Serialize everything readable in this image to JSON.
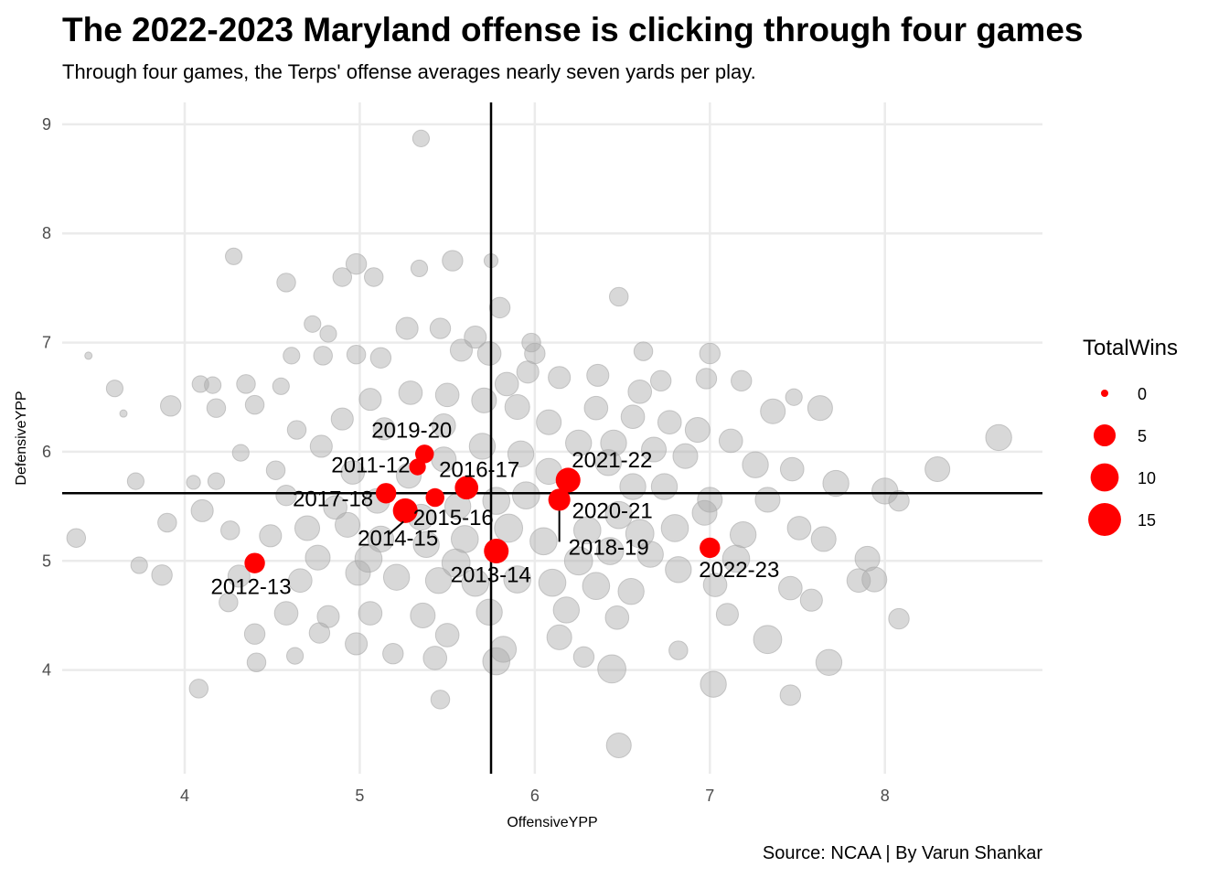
{
  "title": "The 2022-2023 Maryland offense is clicking through four games",
  "subtitle": "Through four games, the Terps' offense averages nearly seven yards per play.",
  "caption": "Source: NCAA | By Varun Shankar",
  "chart_data": {
    "type": "scatter",
    "xlabel": "OffensiveYPP",
    "ylabel": "DefensiveYPP",
    "xlim": [
      3.3,
      8.9
    ],
    "ylim": [
      3.05,
      9.2
    ],
    "x_ticks": [
      4,
      5,
      6,
      7,
      8
    ],
    "y_ticks": [
      4,
      5,
      6,
      7,
      8,
      9
    ],
    "grid": true,
    "vline_x": 5.75,
    "hline_y": 5.62,
    "size_variable": "TotalWins",
    "legend": {
      "title": "TotalWins",
      "position": "right",
      "entries": [
        {
          "label": "0",
          "value": 0
        },
        {
          "label": "5",
          "value": 5
        },
        {
          "label": "10",
          "value": 10
        },
        {
          "label": "15",
          "value": 15
        }
      ]
    },
    "colors": {
      "highlight": "#ff0000",
      "background_points": "#a9a9a9",
      "reference_lines": "#000000",
      "grid": "#ebebeb"
    },
    "highlighted": [
      {
        "season": "2011-12",
        "x": 5.33,
        "y": 5.86,
        "wins": 2
      },
      {
        "season": "2012-13",
        "x": 4.4,
        "y": 4.98,
        "wins": 4
      },
      {
        "season": "2013-14",
        "x": 5.78,
        "y": 5.09,
        "wins": 7
      },
      {
        "season": "2014-15",
        "x": 5.26,
        "y": 5.46,
        "wins": 7
      },
      {
        "season": "2015-16",
        "x": 5.43,
        "y": 5.58,
        "wins": 3
      },
      {
        "season": "2016-17",
        "x": 5.61,
        "y": 5.67,
        "wins": 6
      },
      {
        "season": "2017-18",
        "x": 5.15,
        "y": 5.62,
        "wins": 4
      },
      {
        "season": "2018-19",
        "x": 6.14,
        "y": 5.56,
        "wins": 5
      },
      {
        "season": "2019-20",
        "x": 5.37,
        "y": 5.98,
        "wins": 3
      },
      {
        "season": "2020-21",
        "x": 6.14,
        "y": 5.56,
        "wins": 2
      },
      {
        "season": "2021-22",
        "x": 6.19,
        "y": 5.74,
        "wins": 7
      },
      {
        "season": "2022-23",
        "x": 7.0,
        "y": 5.12,
        "wins": 4
      }
    ],
    "background_points": [
      {
        "x": 5.35,
        "y": 8.87,
        "wins": 2
      },
      {
        "x": 3.45,
        "y": 6.88,
        "wins": 0
      },
      {
        "x": 4.28,
        "y": 7.79,
        "wins": 2
      },
      {
        "x": 5.75,
        "y": 7.75,
        "wins": 1
      },
      {
        "x": 3.38,
        "y": 5.21,
        "wins": 3
      },
      {
        "x": 8.65,
        "y": 6.13,
        "wins": 8
      },
      {
        "x": 8.3,
        "y": 5.84,
        "wins": 7
      },
      {
        "x": 8.08,
        "y": 5.55,
        "wins": 4
      },
      {
        "x": 8.0,
        "y": 5.64,
        "wins": 8
      },
      {
        "x": 8.08,
        "y": 4.47,
        "wins": 4
      },
      {
        "x": 7.63,
        "y": 6.4,
        "wins": 7
      },
      {
        "x": 7.47,
        "y": 5.84,
        "wins": 6
      },
      {
        "x": 6.48,
        "y": 3.31,
        "wins": 7
      },
      {
        "x": 5.46,
        "y": 3.73,
        "wins": 3
      },
      {
        "x": 4.08,
        "y": 3.83,
        "wins": 3
      },
      {
        "x": 3.72,
        "y": 5.73,
        "wins": 2
      },
      {
        "x": 3.87,
        "y": 4.87,
        "wins": 4
      },
      {
        "x": 3.92,
        "y": 6.42,
        "wins": 4
      },
      {
        "x": 3.6,
        "y": 6.58,
        "wins": 2
      },
      {
        "x": 3.65,
        "y": 6.35,
        "wins": 0
      },
      {
        "x": 6.72,
        "y": 6.65,
        "wins": 4
      },
      {
        "x": 6.48,
        "y": 7.42,
        "wins": 3
      },
      {
        "x": 7.33,
        "y": 4.28,
        "wins": 10
      },
      {
        "x": 7.68,
        "y": 4.07,
        "wins": 8
      },
      {
        "x": 7.46,
        "y": 3.77,
        "wins": 4
      },
      {
        "x": 7.02,
        "y": 3.87,
        "wins": 8
      },
      {
        "x": 6.44,
        "y": 4.01,
        "wins": 10
      },
      {
        "x": 5.78,
        "y": 4.08,
        "wins": 9
      },
      {
        "x": 4.1,
        "y": 5.46,
        "wins": 5
      },
      {
        "x": 4.4,
        "y": 4.33,
        "wins": 4
      },
      {
        "x": 4.41,
        "y": 4.07,
        "wins": 3
      },
      {
        "x": 4.63,
        "y": 4.13,
        "wins": 2
      },
      {
        "x": 4.09,
        "y": 6.62,
        "wins": 2
      },
      {
        "x": 4.16,
        "y": 6.61,
        "wins": 2
      },
      {
        "x": 4.18,
        "y": 6.4,
        "wins": 3
      },
      {
        "x": 4.35,
        "y": 6.62,
        "wins": 3
      },
      {
        "x": 4.05,
        "y": 5.72,
        "wins": 1
      },
      {
        "x": 4.18,
        "y": 5.73,
        "wins": 2
      },
      {
        "x": 3.9,
        "y": 5.35,
        "wins": 3
      },
      {
        "x": 3.74,
        "y": 4.96,
        "wins": 2
      },
      {
        "x": 4.9,
        "y": 7.6,
        "wins": 3
      },
      {
        "x": 4.98,
        "y": 7.72,
        "wins": 4
      },
      {
        "x": 5.08,
        "y": 7.6,
        "wins": 3
      },
      {
        "x": 5.53,
        "y": 7.75,
        "wins": 4
      },
      {
        "x": 5.34,
        "y": 7.68,
        "wins": 2
      },
      {
        "x": 4.58,
        "y": 7.55,
        "wins": 3
      },
      {
        "x": 5.66,
        "y": 7.05,
        "wins": 5
      },
      {
        "x": 5.8,
        "y": 7.32,
        "wins": 4
      },
      {
        "x": 6.36,
        "y": 6.7,
        "wins": 5
      },
      {
        "x": 6.6,
        "y": 6.55,
        "wins": 6
      },
      {
        "x": 6.98,
        "y": 6.67,
        "wins": 4
      },
      {
        "x": 7.18,
        "y": 6.65,
        "wins": 4
      },
      {
        "x": 7.36,
        "y": 6.37,
        "wins": 7
      },
      {
        "x": 7.48,
        "y": 6.5,
        "wins": 2
      },
      {
        "x": 7.72,
        "y": 5.71,
        "wins": 8
      },
      {
        "x": 7.65,
        "y": 5.2,
        "wins": 7
      },
      {
        "x": 7.9,
        "y": 5.02,
        "wins": 7
      },
      {
        "x": 7.94,
        "y": 4.83,
        "wins": 7
      },
      {
        "x": 7.85,
        "y": 4.82,
        "wins": 6
      },
      {
        "x": 7.58,
        "y": 4.64,
        "wins": 5
      },
      {
        "x": 7.46,
        "y": 4.75,
        "wins": 6
      },
      {
        "x": 7.1,
        "y": 4.51,
        "wins": 5
      },
      {
        "x": 6.82,
        "y": 4.18,
        "wins": 3
      },
      {
        "x": 6.47,
        "y": 4.48,
        "wins": 6
      },
      {
        "x": 6.14,
        "y": 4.3,
        "wins": 7
      },
      {
        "x": 5.82,
        "y": 4.19,
        "wins": 8
      },
      {
        "x": 5.43,
        "y": 4.11,
        "wins": 6
      },
      {
        "x": 5.19,
        "y": 4.15,
        "wins": 4
      },
      {
        "x": 4.82,
        "y": 4.49,
        "wins": 5
      },
      {
        "x": 4.58,
        "y": 4.52,
        "wins": 6
      },
      {
        "x": 4.31,
        "y": 4.86,
        "wins": 5
      },
      {
        "x": 4.49,
        "y": 5.23,
        "wins": 5
      },
      {
        "x": 4.52,
        "y": 5.83,
        "wins": 3
      },
      {
        "x": 4.4,
        "y": 6.43,
        "wins": 3
      },
      {
        "x": 4.61,
        "y": 6.88,
        "wins": 2
      },
      {
        "x": 4.73,
        "y": 7.17,
        "wins": 2
      },
      {
        "x": 4.82,
        "y": 7.08,
        "wins": 2
      },
      {
        "x": 4.79,
        "y": 6.88,
        "wins": 3
      },
      {
        "x": 4.98,
        "y": 6.89,
        "wins": 3
      },
      {
        "x": 5.12,
        "y": 6.86,
        "wins": 4
      },
      {
        "x": 5.27,
        "y": 7.13,
        "wins": 5
      },
      {
        "x": 5.46,
        "y": 7.13,
        "wins": 4
      },
      {
        "x": 5.58,
        "y": 6.93,
        "wins": 5
      },
      {
        "x": 5.74,
        "y": 6.9,
        "wins": 6
      },
      {
        "x": 5.96,
        "y": 6.73,
        "wins": 5
      },
      {
        "x": 6.14,
        "y": 6.68,
        "wins": 5
      },
      {
        "x": 6.35,
        "y": 6.4,
        "wins": 6
      },
      {
        "x": 6.56,
        "y": 6.32,
        "wins": 6
      },
      {
        "x": 6.77,
        "y": 6.27,
        "wins": 6
      },
      {
        "x": 6.93,
        "y": 6.2,
        "wins": 7
      },
      {
        "x": 7.12,
        "y": 6.1,
        "wins": 6
      },
      {
        "x": 7.26,
        "y": 5.88,
        "wins": 8
      },
      {
        "x": 7.33,
        "y": 5.56,
        "wins": 7
      },
      {
        "x": 7.19,
        "y": 5.24,
        "wins": 8
      },
      {
        "x": 6.97,
        "y": 5.44,
        "wins": 7
      },
      {
        "x": 6.74,
        "y": 5.68,
        "wins": 8
      },
      {
        "x": 6.66,
        "y": 5.06,
        "wins": 8
      },
      {
        "x": 6.43,
        "y": 5.09,
        "wins": 9
      },
      {
        "x": 6.35,
        "y": 4.77,
        "wins": 9
      },
      {
        "x": 6.1,
        "y": 4.8,
        "wins": 9
      },
      {
        "x": 5.9,
        "y": 4.83,
        "wins": 9
      },
      {
        "x": 5.66,
        "y": 4.8,
        "wins": 9
      },
      {
        "x": 5.45,
        "y": 4.82,
        "wins": 8
      },
      {
        "x": 5.21,
        "y": 4.85,
        "wins": 8
      },
      {
        "x": 4.99,
        "y": 4.89,
        "wins": 7
      },
      {
        "x": 4.76,
        "y": 5.03,
        "wins": 7
      },
      {
        "x": 4.7,
        "y": 5.3,
        "wins": 7
      },
      {
        "x": 4.86,
        "y": 5.49,
        "wins": 6
      },
      {
        "x": 4.96,
        "y": 5.81,
        "wins": 6
      },
      {
        "x": 4.78,
        "y": 6.05,
        "wins": 5
      },
      {
        "x": 4.9,
        "y": 6.3,
        "wins": 5
      },
      {
        "x": 5.06,
        "y": 6.48,
        "wins": 5
      },
      {
        "x": 5.29,
        "y": 6.54,
        "wins": 6
      },
      {
        "x": 5.5,
        "y": 6.52,
        "wins": 6
      },
      {
        "x": 5.71,
        "y": 6.47,
        "wins": 7
      },
      {
        "x": 5.9,
        "y": 6.41,
        "wins": 7
      },
      {
        "x": 6.08,
        "y": 6.27,
        "wins": 7
      },
      {
        "x": 6.25,
        "y": 6.08,
        "wins": 8
      },
      {
        "x": 6.42,
        "y": 5.9,
        "wins": 8
      },
      {
        "x": 6.56,
        "y": 5.68,
        "wins": 8
      },
      {
        "x": 6.48,
        "y": 5.42,
        "wins": 9
      },
      {
        "x": 6.3,
        "y": 5.28,
        "wins": 9
      },
      {
        "x": 6.05,
        "y": 5.18,
        "wins": 9
      },
      {
        "x": 5.85,
        "y": 5.3,
        "wins": 10
      },
      {
        "x": 5.6,
        "y": 5.2,
        "wins": 9
      },
      {
        "x": 5.38,
        "y": 5.15,
        "wins": 8
      },
      {
        "x": 5.12,
        "y": 5.2,
        "wins": 8
      },
      {
        "x": 4.93,
        "y": 5.33,
        "wins": 7
      },
      {
        "x": 5.1,
        "y": 5.55,
        "wins": 7
      },
      {
        "x": 5.28,
        "y": 5.78,
        "wins": 7
      },
      {
        "x": 5.48,
        "y": 5.93,
        "wins": 7
      },
      {
        "x": 5.7,
        "y": 6.05,
        "wins": 8
      },
      {
        "x": 5.92,
        "y": 5.98,
        "wins": 8
      },
      {
        "x": 6.08,
        "y": 5.82,
        "wins": 8
      },
      {
        "x": 5.95,
        "y": 5.6,
        "wins": 9
      },
      {
        "x": 5.78,
        "y": 5.55,
        "wins": 9
      },
      {
        "x": 5.56,
        "y": 5.5,
        "wins": 8
      },
      {
        "x": 5.35,
        "y": 5.4,
        "wins": 8
      },
      {
        "x": 5.48,
        "y": 6.24,
        "wins": 6
      },
      {
        "x": 5.84,
        "y": 6.62,
        "wins": 6
      },
      {
        "x": 6.0,
        "y": 6.9,
        "wins": 4
      },
      {
        "x": 5.14,
        "y": 6.21,
        "wins": 5
      },
      {
        "x": 4.64,
        "y": 6.2,
        "wins": 3
      },
      {
        "x": 4.58,
        "y": 5.6,
        "wins": 4
      },
      {
        "x": 4.66,
        "y": 4.82,
        "wins": 6
      },
      {
        "x": 5.06,
        "y": 4.52,
        "wins": 6
      },
      {
        "x": 5.36,
        "y": 4.5,
        "wins": 7
      },
      {
        "x": 5.74,
        "y": 4.53,
        "wins": 8
      },
      {
        "x": 6.18,
        "y": 4.55,
        "wins": 8
      },
      {
        "x": 6.55,
        "y": 4.72,
        "wins": 8
      },
      {
        "x": 6.82,
        "y": 4.92,
        "wins": 8
      },
      {
        "x": 7.0,
        "y": 5.56,
        "wins": 7
      },
      {
        "x": 6.86,
        "y": 5.96,
        "wins": 7
      },
      {
        "x": 6.68,
        "y": 6.02,
        "wins": 7
      },
      {
        "x": 7.51,
        "y": 5.3,
        "wins": 6
      },
      {
        "x": 7.03,
        "y": 4.78,
        "wins": 6
      },
      {
        "x": 6.28,
        "y": 4.12,
        "wins": 4
      },
      {
        "x": 5.5,
        "y": 4.32,
        "wins": 6
      },
      {
        "x": 4.98,
        "y": 4.24,
        "wins": 5
      },
      {
        "x": 4.77,
        "y": 4.34,
        "wins": 4
      },
      {
        "x": 4.25,
        "y": 4.62,
        "wins": 3
      },
      {
        "x": 4.26,
        "y": 5.28,
        "wins": 3
      },
      {
        "x": 4.32,
        "y": 5.99,
        "wins": 2
      },
      {
        "x": 4.55,
        "y": 6.6,
        "wins": 2
      },
      {
        "x": 5.98,
        "y": 7.0,
        "wins": 3
      },
      {
        "x": 6.62,
        "y": 6.92,
        "wins": 3
      },
      {
        "x": 7.0,
        "y": 6.9,
        "wins": 4
      },
      {
        "x": 6.6,
        "y": 5.25,
        "wins": 10
      },
      {
        "x": 6.25,
        "y": 5.0,
        "wins": 10
      },
      {
        "x": 5.55,
        "y": 4.98,
        "wins": 10
      },
      {
        "x": 5.05,
        "y": 5.02,
        "wins": 9
      },
      {
        "x": 6.8,
        "y": 5.3,
        "wins": 9
      },
      {
        "x": 7.15,
        "y": 5.02,
        "wins": 9
      },
      {
        "x": 6.45,
        "y": 6.08,
        "wins": 8
      }
    ]
  }
}
